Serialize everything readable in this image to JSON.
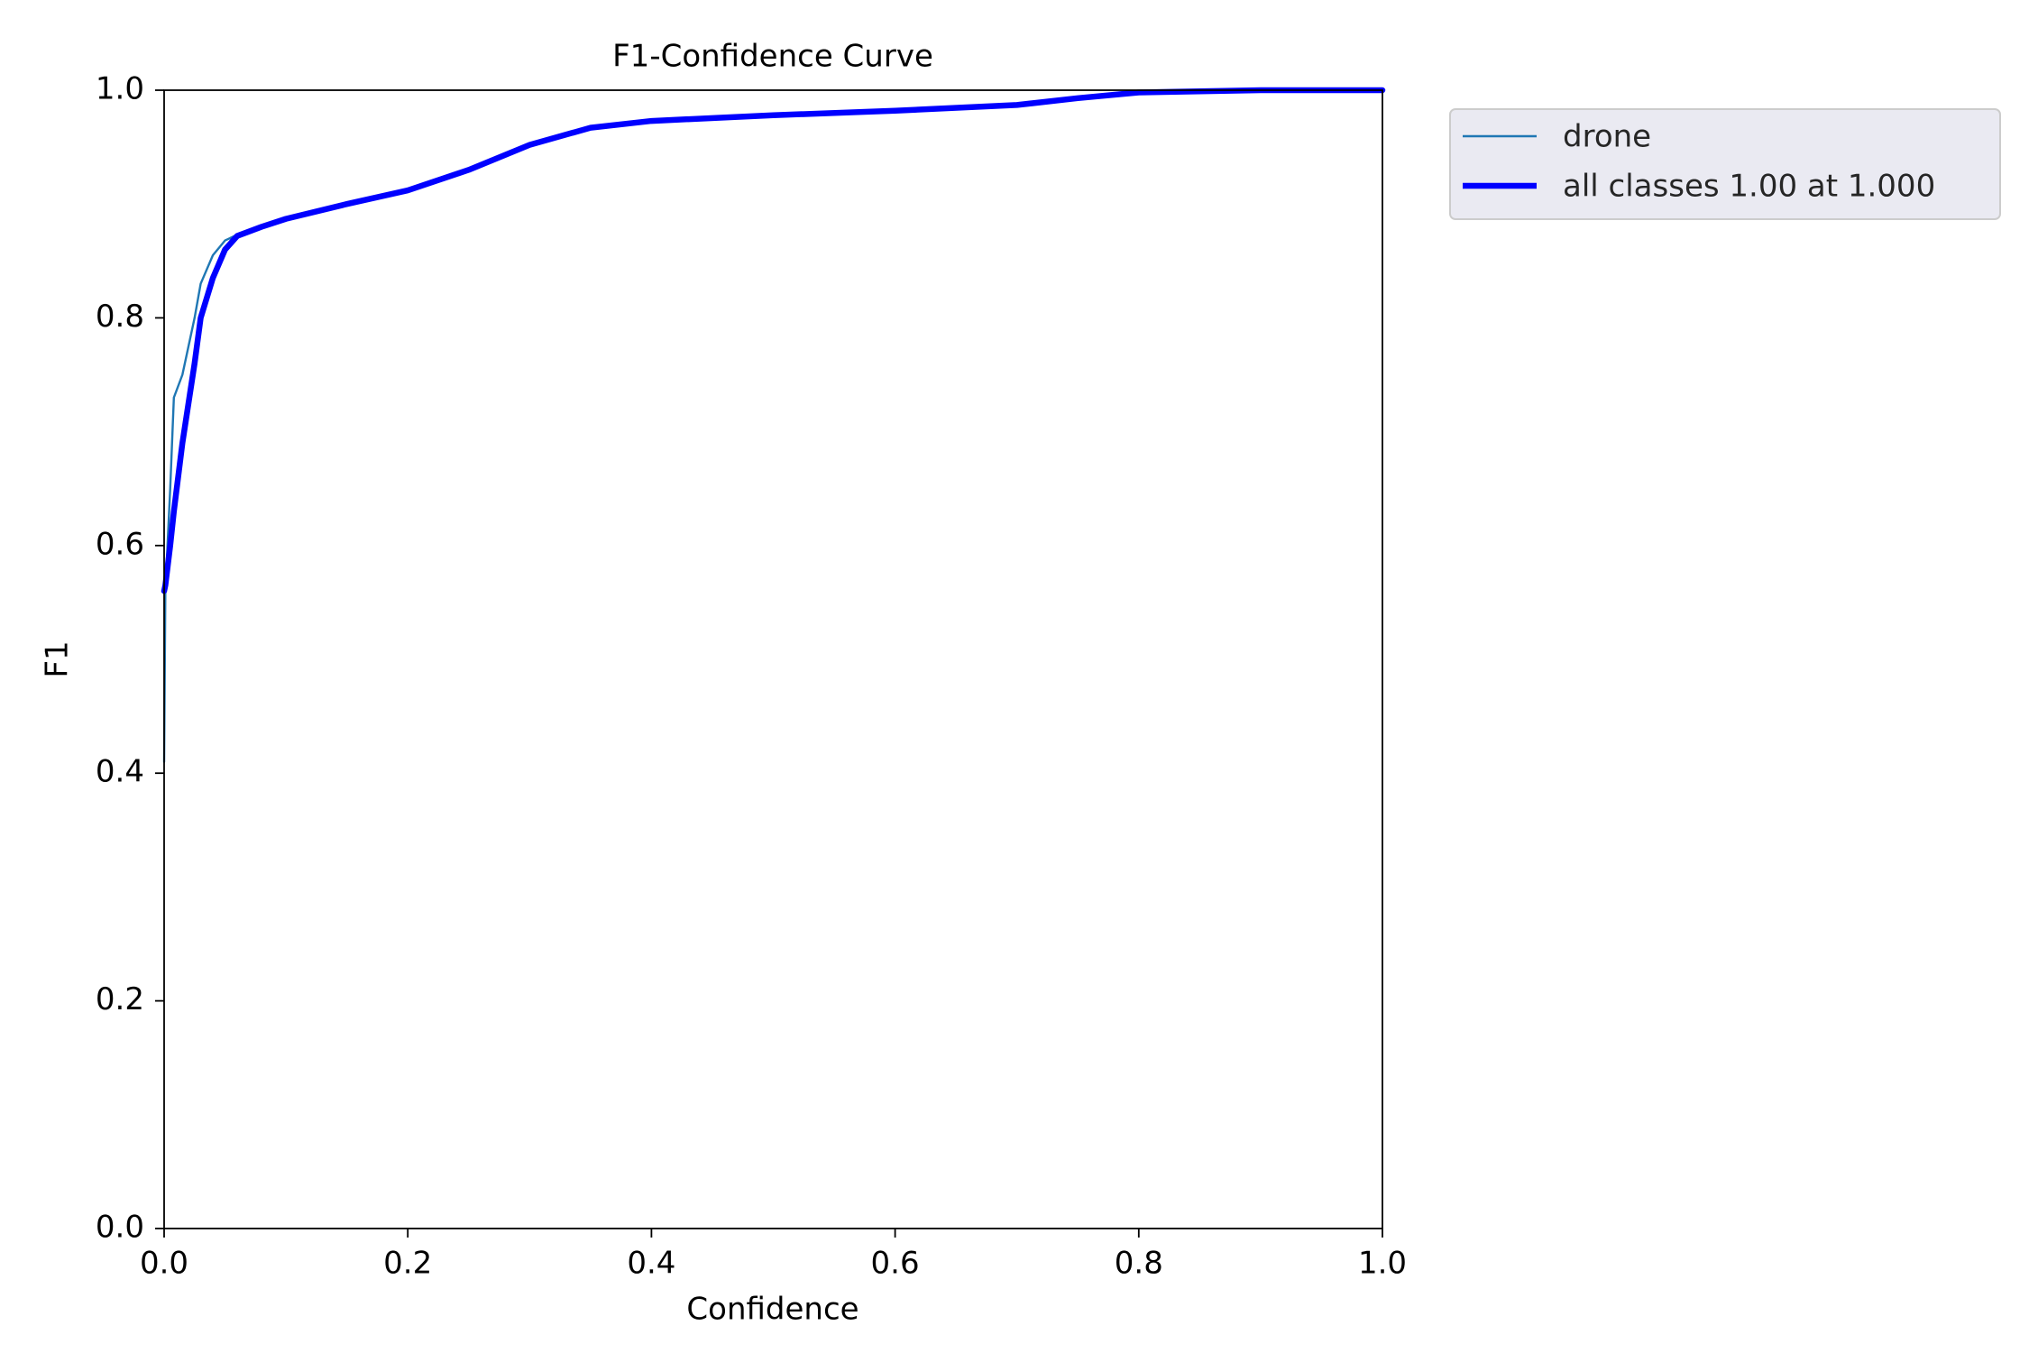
{
  "chart_data": {
    "type": "line",
    "title": "F1-Confidence Curve",
    "x_label": "Confidence",
    "y_label": "F1",
    "xlim": [
      0,
      1
    ],
    "ylim": [
      0,
      1
    ],
    "xticks": [
      {
        "value": 0,
        "label": "0.0"
      },
      0.2,
      0.4,
      0.6,
      0.8,
      {
        "value": 1,
        "label": "1.0"
      }
    ],
    "yticks": [
      {
        "value": 0,
        "label": "0.0"
      },
      0.2,
      0.4,
      0.6,
      0.8,
      {
        "value": 1,
        "label": "1.0"
      }
    ],
    "grid": false,
    "legend": "outside upper right",
    "x": [
      0,
      0.001,
      0.005,
      0.008,
      0.015,
      0.025,
      0.03,
      0.04,
      0.05,
      0.06,
      0.08,
      0.1,
      0.15,
      0.2,
      0.25,
      0.3,
      0.35,
      0.4,
      0.5,
      0.6,
      0.7,
      0.75,
      0.8,
      0.9,
      1.0
    ],
    "series": [
      {
        "name": "drone",
        "color": "#1f77b4",
        "values": [
          0.41,
          0.56,
          0.65,
          0.73,
          0.75,
          0.8,
          0.83,
          0.855,
          0.868,
          0.873,
          0.88,
          0.887,
          0.9,
          0.912,
          0.93,
          0.952,
          0.967,
          0.973,
          0.978,
          0.982,
          0.987,
          0.993,
          0.998,
          1.0,
          1.0
        ]
      },
      {
        "name": "all classes 1.00 at 1.000",
        "color": "#0000ff",
        "values": [
          0.56,
          0.565,
          0.6,
          0.63,
          0.69,
          0.76,
          0.8,
          0.835,
          0.86,
          0.872,
          0.88,
          0.887,
          0.9,
          0.912,
          0.93,
          0.952,
          0.967,
          0.973,
          0.978,
          0.982,
          0.987,
          0.993,
          0.998,
          1.0,
          1.0
        ]
      }
    ]
  }
}
